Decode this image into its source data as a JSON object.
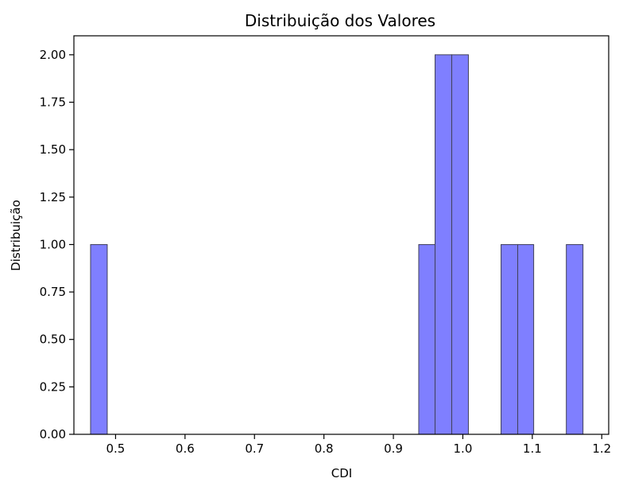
{
  "chart_data": {
    "type": "bar",
    "title": "Distribuição dos Valores",
    "xlabel": "CDI",
    "ylabel": "Distribuição",
    "xlim": [
      0.44,
      1.21
    ],
    "ylim": [
      0,
      2.1
    ],
    "xticks": [
      0.5,
      0.6,
      0.7,
      0.8,
      0.9,
      1.0,
      1.1,
      1.2
    ],
    "xtick_labels": [
      "0.5",
      "0.6",
      "0.7",
      "0.8",
      "0.9",
      "1.0",
      "1.1",
      "1.2"
    ],
    "yticks": [
      0,
      0.25,
      0.5,
      0.75,
      1.0,
      1.25,
      1.5,
      1.75,
      2.0
    ],
    "ytick_labels": [
      "0.00",
      "0.25",
      "0.50",
      "0.75",
      "1.00",
      "1.25",
      "1.50",
      "1.75",
      "2.00"
    ],
    "bars": [
      {
        "x0": 0.464,
        "x1": 0.488,
        "value": 1
      },
      {
        "x0": 0.9365,
        "x1": 0.96,
        "value": 1
      },
      {
        "x0": 0.96,
        "x1": 0.984,
        "value": 2
      },
      {
        "x0": 0.984,
        "x1": 1.008,
        "value": 2
      },
      {
        "x0": 1.055,
        "x1": 1.079,
        "value": 1
      },
      {
        "x0": 1.079,
        "x1": 1.102,
        "value": 1
      },
      {
        "x0": 1.149,
        "x1": 1.173,
        "value": 1
      }
    ],
    "bar_color": "#7f7fff",
    "grid": false,
    "legend": "none"
  }
}
